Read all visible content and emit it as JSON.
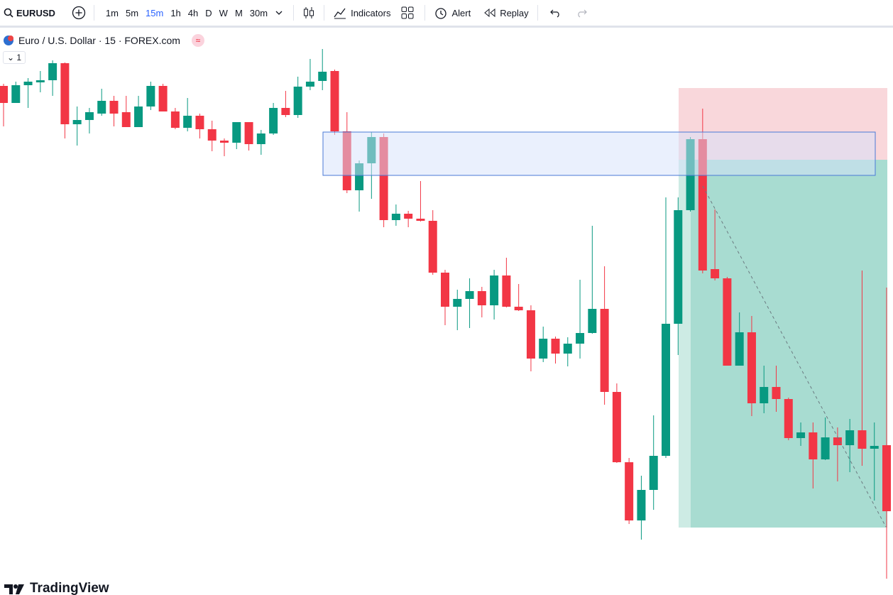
{
  "toolbar": {
    "symbol": "EURUSD",
    "intervals": [
      "1m",
      "5m",
      "15m",
      "1h",
      "4h",
      "D",
      "W",
      "M",
      "30m"
    ],
    "indicators": "Indicators",
    "alert": "Alert",
    "replay": "Replay"
  },
  "legend": {
    "title": "Euro / U.S. Dollar · 15 · FOREX.com",
    "pane": "1"
  },
  "footer": {
    "logo": "TradingView"
  },
  "chart_data": {
    "type": "candlestick",
    "ylim": [
      0,
      800
    ],
    "up_color": "#089981",
    "down_color": "#f23645",
    "open": [
      719,
      695,
      720,
      724,
      727,
      751,
      665,
      671,
      680,
      698,
      682,
      661,
      690,
      719,
      683,
      660,
      677,
      658,
      642,
      639,
      668,
      637,
      652,
      688,
      678,
      718,
      726,
      740,
      655,
      572,
      610,
      647,
      530,
      539,
      532,
      529,
      456,
      408,
      419,
      430,
      410,
      452,
      408,
      403,
      335,
      363,
      342,
      356,
      371,
      405,
      288,
      189,
      107,
      150,
      198,
      384,
      544,
      644,
      461,
      448,
      325,
      372,
      272,
      295,
      278,
      223,
      231,
      193,
      224,
      213,
      234,
      208,
      213
    ],
    "high": [
      722,
      725,
      730,
      740,
      755,
      752,
      690,
      688,
      715,
      705,
      705,
      705,
      725,
      722,
      688,
      702,
      680,
      670,
      645,
      668,
      668,
      657,
      695,
      712,
      732,
      757,
      771,
      742,
      682,
      614,
      654,
      652,
      552,
      543,
      585,
      544,
      460,
      432,
      448,
      436,
      460,
      477,
      440,
      410,
      380,
      366,
      365,
      446,
      522,
      465,
      300,
      195,
      170,
      255,
      562,
      562,
      647,
      687,
      545,
      450,
      400,
      395,
      325,
      325,
      280,
      245,
      245,
      252,
      238,
      250,
      459,
      245,
      435
    ],
    "low": [
      662,
      695,
      688,
      710,
      705,
      645,
      635,
      652,
      677,
      662,
      661,
      661,
      685,
      683,
      658,
      655,
      645,
      627,
      620,
      630,
      628,
      622,
      650,
      675,
      674,
      713,
      713,
      650,
      568,
      542,
      560,
      520,
      522,
      520,
      528,
      453,
      382,
      375,
      378,
      393,
      390,
      407,
      402,
      317,
      330,
      328,
      324,
      335,
      370,
      270,
      188,
      102,
      80,
      122,
      195,
      340,
      542,
      455,
      445,
      325,
      325,
      254,
      258,
      260,
      220,
      212,
      152,
      192,
      162,
      175,
      184,
      135,
      22
    ],
    "close": [
      695,
      720,
      725,
      727,
      751,
      665,
      671,
      682,
      698,
      680,
      661,
      690,
      719,
      683,
      660,
      677,
      658,
      642,
      639,
      668,
      637,
      652,
      688,
      678,
      718,
      725,
      739,
      655,
      572,
      610,
      647,
      530,
      539,
      532,
      529,
      456,
      408,
      419,
      430,
      410,
      452,
      408,
      403,
      335,
      363,
      342,
      356,
      371,
      405,
      288,
      189,
      107,
      150,
      198,
      384,
      544,
      644,
      459,
      448,
      325,
      372,
      272,
      295,
      278,
      223,
      231,
      193,
      224,
      213,
      234,
      208,
      212,
      120
    ]
  }
}
